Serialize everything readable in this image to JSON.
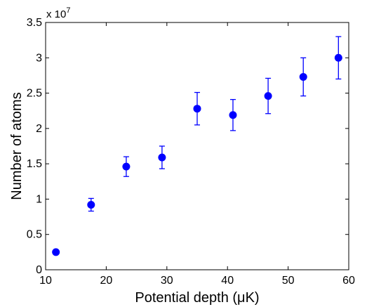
{
  "chart_data": {
    "type": "scatter",
    "title": "",
    "xlabel": "Potential depth (μK)",
    "ylabel": "Number of atoms",
    "xlim": [
      10,
      60
    ],
    "ylim": [
      0,
      3.5
    ],
    "y_scale_factor": {
      "base": "x 10",
      "exponent": "7"
    },
    "xticks": [
      "10",
      "20",
      "30",
      "40",
      "50",
      "60"
    ],
    "yticks": [
      "0",
      "0.5",
      "1",
      "1.5",
      "2",
      "2.5",
      "3",
      "3.5"
    ],
    "grid": false,
    "legend": "none",
    "marker_color": "#0000ff",
    "series": [
      {
        "x": [
          11.7,
          17.5,
          23.3,
          29.2,
          35.0,
          40.9,
          46.7,
          52.5,
          58.3
        ],
        "y": [
          0.25,
          0.92,
          1.46,
          1.59,
          2.28,
          2.19,
          2.46,
          2.73,
          3.0
        ],
        "err_low": [
          0.0,
          0.09,
          0.14,
          0.16,
          0.23,
          0.22,
          0.25,
          0.27,
          0.3
        ],
        "err_high": [
          0.0,
          0.09,
          0.14,
          0.16,
          0.23,
          0.22,
          0.25,
          0.27,
          0.3
        ]
      }
    ]
  }
}
